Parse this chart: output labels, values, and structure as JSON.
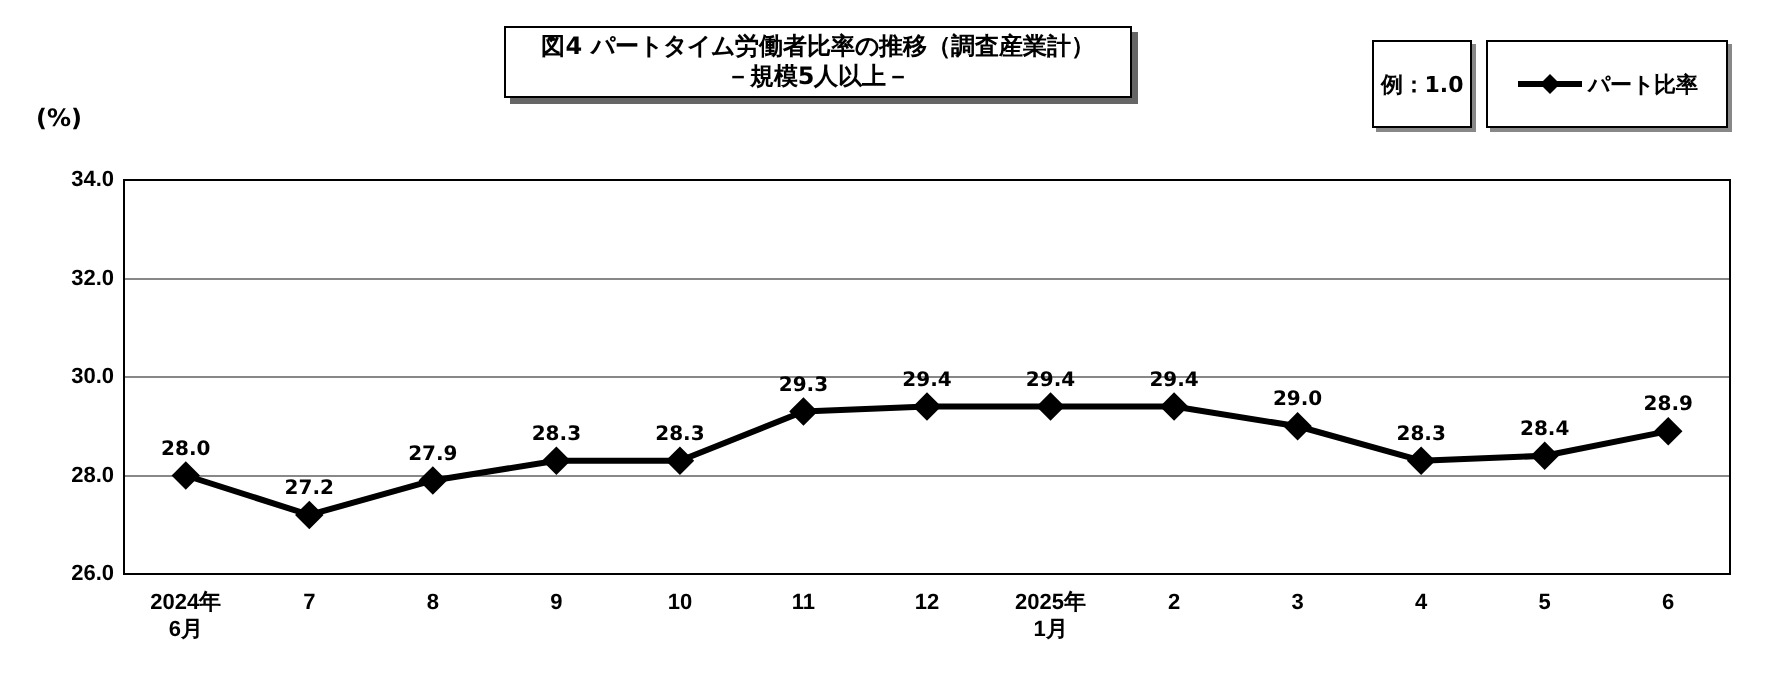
{
  "chart_data": {
    "type": "line",
    "title": "図4  パートタイム労働者比率の推移（調査産業計）",
    "subtitle": "－規模5人以上－",
    "ylabel": "(%)",
    "annotations": [
      "例：1.0"
    ],
    "categories": [
      "2024年\n6月",
      "7",
      "8",
      "9",
      "10",
      "11",
      "12",
      "2025年\n1月",
      "2",
      "3",
      "4",
      "5",
      "6"
    ],
    "series": [
      {
        "name": "パート比率",
        "color": "#000000",
        "values": [
          28.0,
          27.2,
          27.9,
          28.3,
          28.3,
          29.3,
          29.4,
          29.4,
          29.4,
          29.0,
          28.3,
          28.4,
          28.9
        ],
        "value_labels": [
          "28.0",
          "27.2",
          "27.9",
          "28.3",
          "28.3",
          "29.3",
          "29.4",
          "29.4",
          "29.4",
          "29.0",
          "28.3",
          "28.4",
          "28.9"
        ]
      }
    ],
    "ylim": [
      26,
      34
    ],
    "yticks": [
      {
        "value": 26,
        "label": "26.0"
      },
      {
        "value": 28,
        "label": "28.0"
      },
      {
        "value": 30,
        "label": "30.0"
      },
      {
        "value": 32,
        "label": "32.0"
      },
      {
        "value": 34,
        "label": "34.0"
      }
    ],
    "grid": "y",
    "legend": "top right",
    "marker": "diamond",
    "line_style": "solid"
  }
}
